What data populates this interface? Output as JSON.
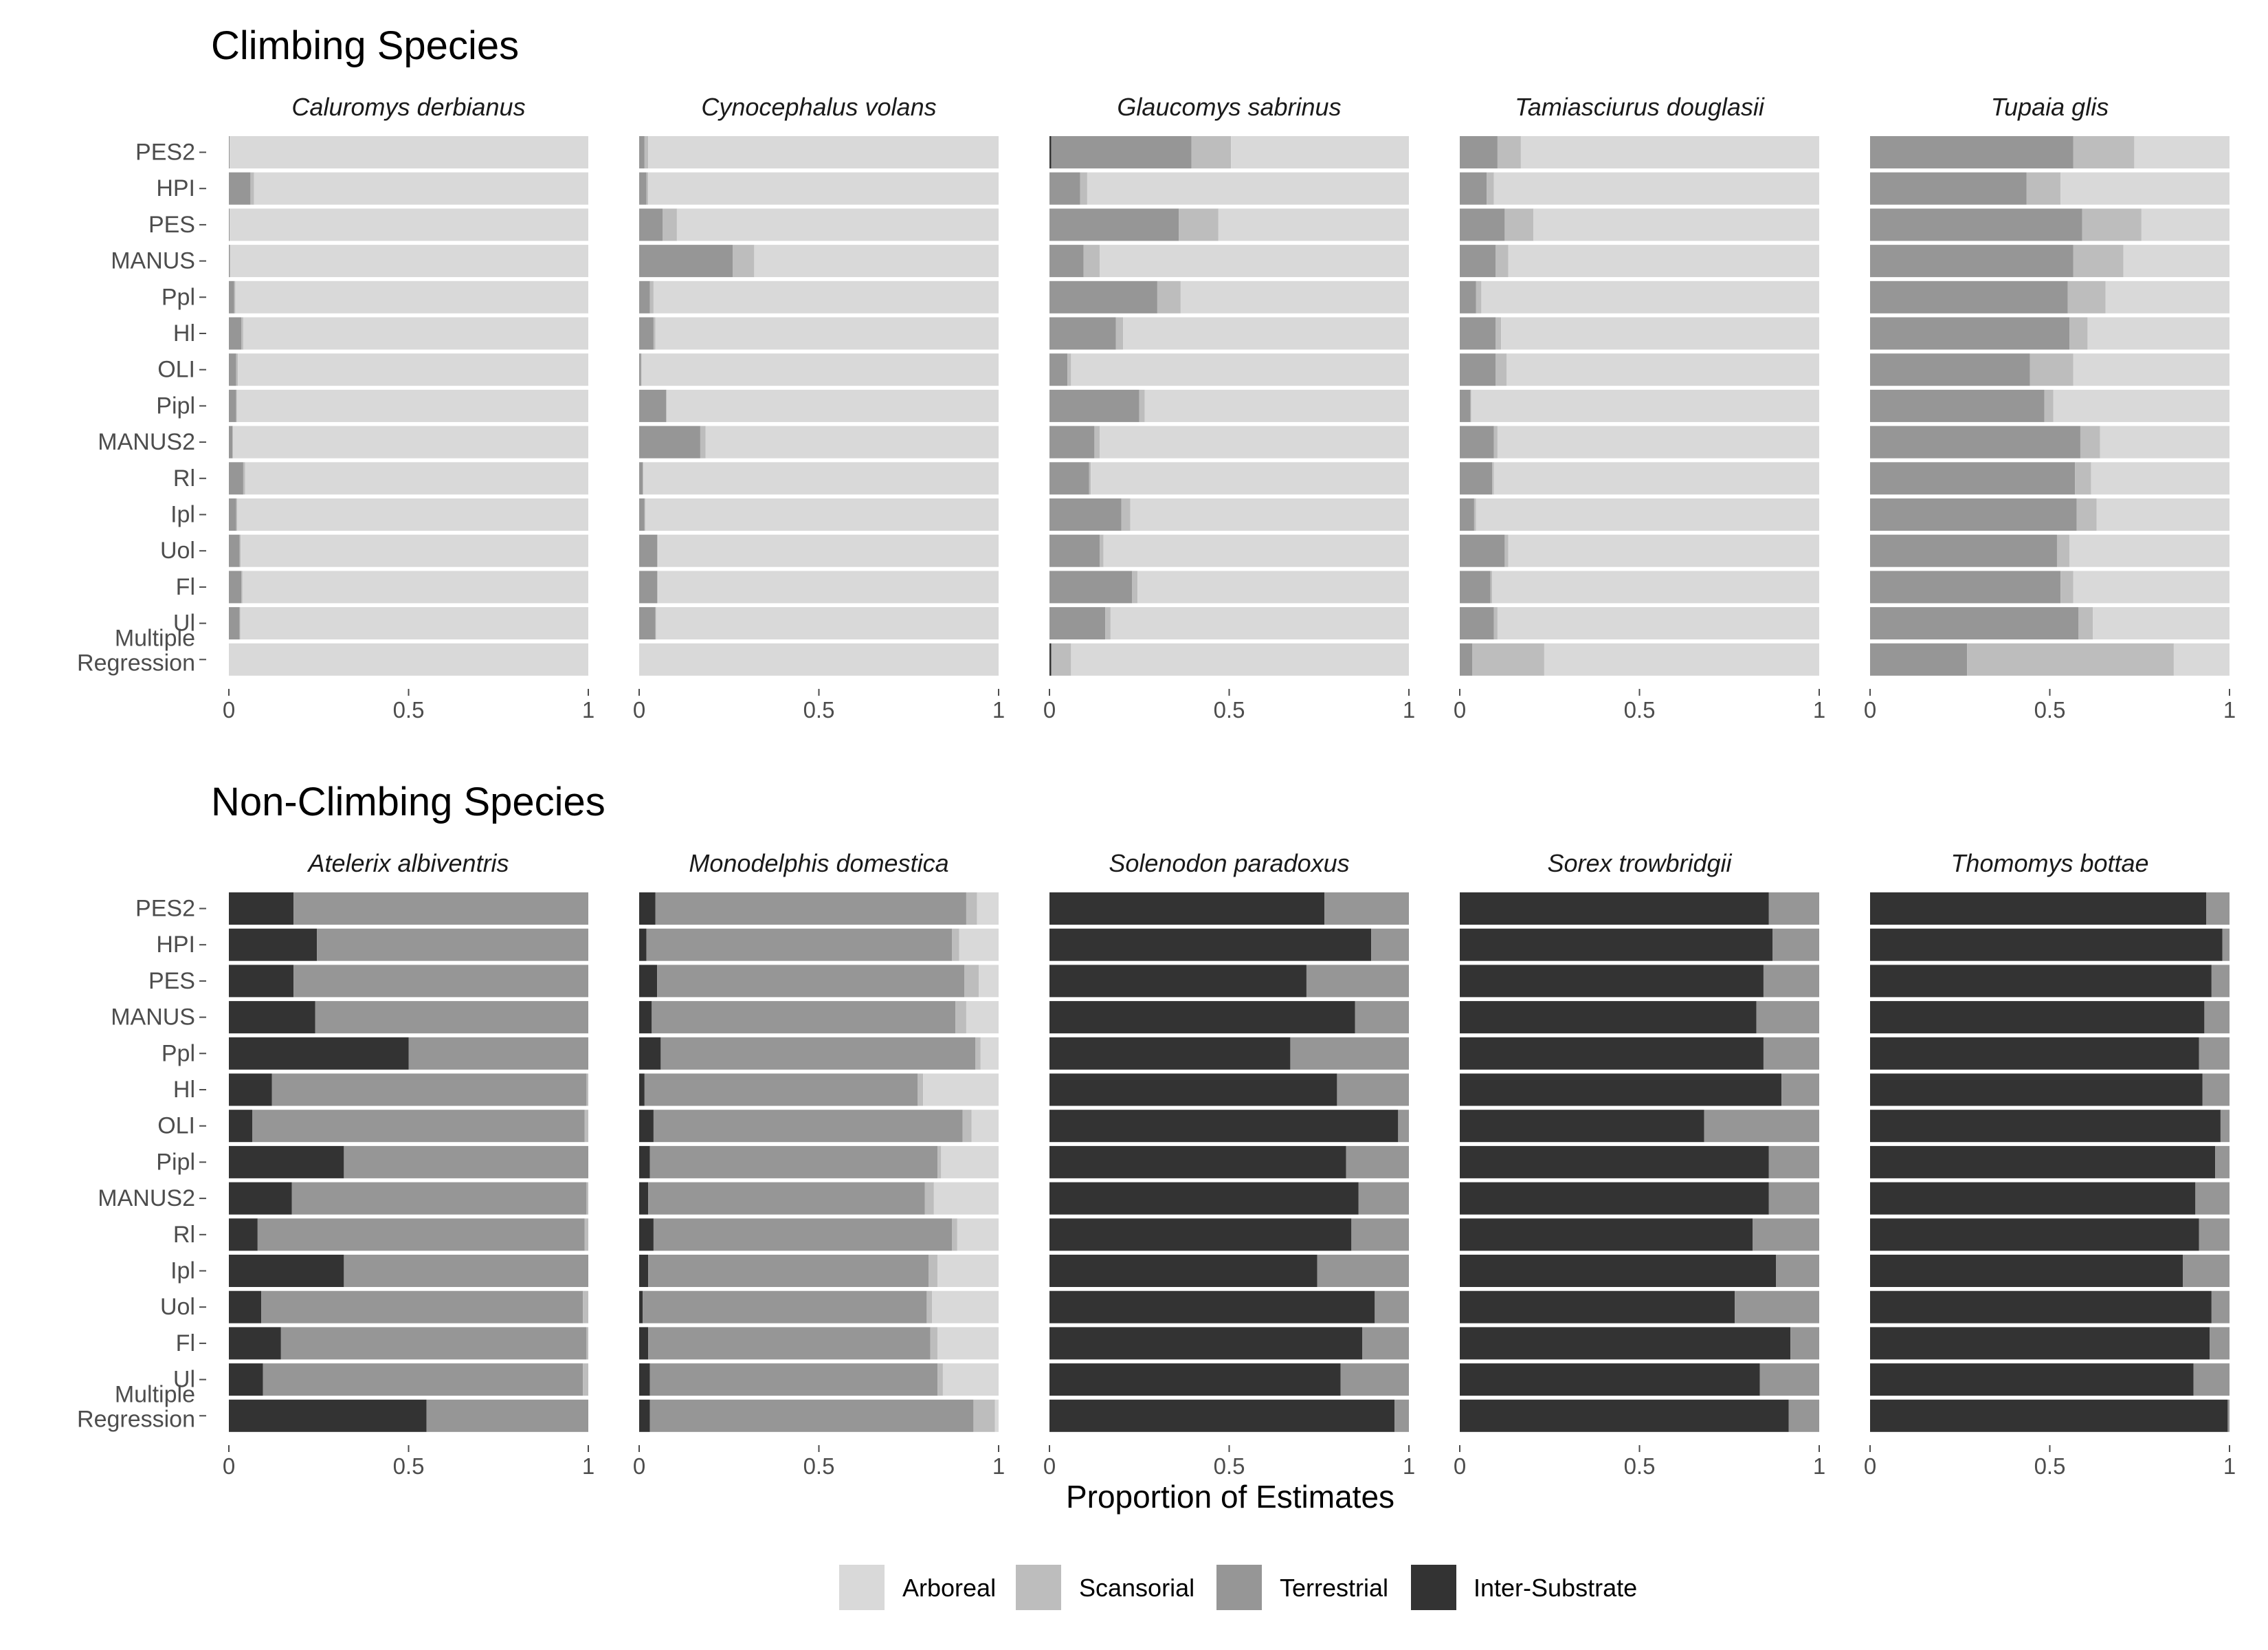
{
  "chart_data": {
    "type": "bar",
    "orientation": "horizontal",
    "stacked": true,
    "xlabel": "Proportion of Estimates",
    "xlim": [
      0,
      1
    ],
    "xticks": [
      0,
      0.5,
      1
    ],
    "xtick_labels": [
      "0",
      "0.5",
      "1"
    ],
    "grid": false,
    "legend_position": "bottom",
    "legend": [
      {
        "name": "Arboreal",
        "color": "#d9d9d9"
      },
      {
        "name": "Scansorial",
        "color": "#bdbdbd"
      },
      {
        "name": "Terrestrial",
        "color": "#969696"
      },
      {
        "name": "Inter-Substrate",
        "color": "#333333"
      }
    ],
    "series_order": [
      "Inter-Substrate",
      "Terrestrial",
      "Scansorial",
      "Arboreal"
    ],
    "categories": [
      "PES2",
      "HPI",
      "PES",
      "MANUS",
      "Ppl",
      "Hl",
      "OLI",
      "Pipl",
      "MANUS2",
      "Rl",
      "Ipl",
      "Uol",
      "Fl",
      "Ul",
      "Multiple\nRegression"
    ],
    "groups": [
      {
        "title": "Climbing Species",
        "facets": [
          {
            "title": "Caluromys derbianus",
            "bars": [
              [
                0,
                0.002,
                0,
                0.998
              ],
              [
                0,
                0.06,
                0.01,
                0.93
              ],
              [
                0,
                0.002,
                0,
                0.998
              ],
              [
                0,
                0.003,
                0,
                0.997
              ],
              [
                0,
                0.015,
                0.003,
                0.982
              ],
              [
                0,
                0.035,
                0.005,
                0.96
              ],
              [
                0,
                0.02,
                0.005,
                0.975
              ],
              [
                0,
                0.02,
                0.002,
                0.978
              ],
              [
                0,
                0.01,
                0.002,
                0.988
              ],
              [
                0,
                0.04,
                0.005,
                0.955
              ],
              [
                0,
                0.02,
                0.003,
                0.977
              ],
              [
                0,
                0.03,
                0.003,
                0.967
              ],
              [
                0,
                0.035,
                0.003,
                0.962
              ],
              [
                0,
                0.03,
                0.002,
                0.968
              ],
              [
                0,
                0,
                0,
                1
              ]
            ]
          },
          {
            "title": "Cynocephalus volans",
            "bars": [
              [
                0,
                0.015,
                0.01,
                0.975
              ],
              [
                0,
                0.02,
                0.005,
                0.975
              ],
              [
                0,
                0.065,
                0.04,
                0.895
              ],
              [
                0,
                0.26,
                0.06,
                0.68
              ],
              [
                0,
                0.03,
                0.01,
                0.96
              ],
              [
                0,
                0.04,
                0.005,
                0.955
              ],
              [
                0,
                0.005,
                0.002,
                0.993
              ],
              [
                0,
                0.075,
                0.002,
                0.923
              ],
              [
                0,
                0.17,
                0.015,
                0.815
              ],
              [
                0,
                0.01,
                0.002,
                0.988
              ],
              [
                0,
                0.015,
                0.002,
                0.983
              ],
              [
                0,
                0.05,
                0.002,
                0.948
              ],
              [
                0,
                0.05,
                0.002,
                0.948
              ],
              [
                0,
                0.045,
                0.002,
                0.953
              ],
              [
                0,
                0,
                0,
                1
              ]
            ]
          },
          {
            "title": "Glaucomys sabrinus",
            "bars": [
              [
                0.005,
                0.39,
                0.11,
                0.495
              ],
              [
                0,
                0.085,
                0.02,
                0.895
              ],
              [
                0,
                0.36,
                0.11,
                0.53
              ],
              [
                0,
                0.095,
                0.045,
                0.86
              ],
              [
                0,
                0.3,
                0.065,
                0.635
              ],
              [
                0,
                0.185,
                0.02,
                0.795
              ],
              [
                0,
                0.05,
                0.01,
                0.94
              ],
              [
                0,
                0.25,
                0.015,
                0.735
              ],
              [
                0,
                0.125,
                0.015,
                0.86
              ],
              [
                0,
                0.11,
                0.005,
                0.885
              ],
              [
                0,
                0.2,
                0.025,
                0.775
              ],
              [
                0,
                0.14,
                0.01,
                0.85
              ],
              [
                0,
                0.23,
                0.015,
                0.755
              ],
              [
                0,
                0.155,
                0.015,
                0.83
              ],
              [
                0.005,
                0,
                0.055,
                0.94
              ]
            ]
          },
          {
            "title": "Tamiasciurus douglasii",
            "bars": [
              [
                0,
                0.105,
                0.065,
                0.83
              ],
              [
                0,
                0.075,
                0.02,
                0.905
              ],
              [
                0,
                0.125,
                0.08,
                0.795
              ],
              [
                0,
                0.1,
                0.035,
                0.865
              ],
              [
                0,
                0.045,
                0.015,
                0.94
              ],
              [
                0,
                0.1,
                0.015,
                0.885
              ],
              [
                0,
                0.1,
                0.03,
                0.87
              ],
              [
                0,
                0.03,
                0.002,
                0.968
              ],
              [
                0,
                0.095,
                0.01,
                0.895
              ],
              [
                0,
                0.09,
                0.005,
                0.905
              ],
              [
                0,
                0.04,
                0.005,
                0.955
              ],
              [
                0,
                0.125,
                0.01,
                0.865
              ],
              [
                0,
                0.085,
                0.005,
                0.91
              ],
              [
                0,
                0.095,
                0.01,
                0.895
              ],
              [
                0,
                0.035,
                0.2,
                0.765
              ]
            ]
          },
          {
            "title": "Tupaia glis",
            "bars": [
              [
                0,
                0.565,
                0.17,
                0.265
              ],
              [
                0,
                0.435,
                0.095,
                0.47
              ],
              [
                0,
                0.59,
                0.165,
                0.245
              ],
              [
                0,
                0.565,
                0.14,
                0.295
              ],
              [
                0,
                0.55,
                0.105,
                0.345
              ],
              [
                0,
                0.555,
                0.05,
                0.395
              ],
              [
                0,
                0.445,
                0.12,
                0.435
              ],
              [
                0,
                0.485,
                0.025,
                0.49
              ],
              [
                0,
                0.585,
                0.055,
                0.36
              ],
              [
                0,
                0.57,
                0.045,
                0.385
              ],
              [
                0,
                0.575,
                0.055,
                0.37
              ],
              [
                0,
                0.52,
                0.035,
                0.445
              ],
              [
                0,
                0.53,
                0.035,
                0.435
              ],
              [
                0,
                0.58,
                0.04,
                0.38
              ],
              [
                0,
                0.27,
                0.575,
                0.155
              ]
            ]
          }
        ]
      },
      {
        "title": "Non-Climbing Species",
        "facets": [
          {
            "title": "Atelerix albiventris",
            "bars": [
              [
                0.18,
                0.82,
                0,
                0
              ],
              [
                0.245,
                0.755,
                0,
                0
              ],
              [
                0.18,
                0.82,
                0,
                0
              ],
              [
                0.24,
                0.76,
                0,
                0
              ],
              [
                0.5,
                0.5,
                0,
                0
              ],
              [
                0.12,
                0.875,
                0.005,
                0
              ],
              [
                0.065,
                0.925,
                0.01,
                0
              ],
              [
                0.32,
                0.68,
                0,
                0
              ],
              [
                0.175,
                0.82,
                0.005,
                0
              ],
              [
                0.08,
                0.91,
                0.01,
                0
              ],
              [
                0.32,
                0.68,
                0,
                0
              ],
              [
                0.09,
                0.895,
                0.015,
                0
              ],
              [
                0.145,
                0.85,
                0.005,
                0
              ],
              [
                0.095,
                0.89,
                0.015,
                0
              ],
              [
                0.55,
                0.45,
                0,
                0
              ]
            ]
          },
          {
            "title": "Monodelphis domestica",
            "bars": [
              [
                0.045,
                0.865,
                0.03,
                0.06
              ],
              [
                0.02,
                0.85,
                0.02,
                0.11
              ],
              [
                0.05,
                0.855,
                0.04,
                0.055
              ],
              [
                0.035,
                0.845,
                0.03,
                0.09
              ],
              [
                0.06,
                0.875,
                0.015,
                0.05
              ],
              [
                0.015,
                0.76,
                0.015,
                0.21
              ],
              [
                0.04,
                0.86,
                0.025,
                0.075
              ],
              [
                0.03,
                0.8,
                0.01,
                0.16
              ],
              [
                0.025,
                0.77,
                0.025,
                0.18
              ],
              [
                0.04,
                0.83,
                0.015,
                0.115
              ],
              [
                0.025,
                0.78,
                0.025,
                0.17
              ],
              [
                0.01,
                0.79,
                0.015,
                0.185
              ],
              [
                0.025,
                0.785,
                0.02,
                0.17
              ],
              [
                0.03,
                0.8,
                0.015,
                0.155
              ],
              [
                0.03,
                0.9,
                0.06,
                0.01
              ]
            ]
          },
          {
            "title": "Solenodon paradoxus",
            "bars": [
              [
                0.765,
                0.235,
                0,
                0
              ],
              [
                0.895,
                0.105,
                0,
                0
              ],
              [
                0.715,
                0.285,
                0,
                0
              ],
              [
                0.85,
                0.15,
                0,
                0
              ],
              [
                0.67,
                0.33,
                0,
                0
              ],
              [
                0.8,
                0.2,
                0,
                0
              ],
              [
                0.97,
                0.03,
                0,
                0
              ],
              [
                0.825,
                0.175,
                0,
                0
              ],
              [
                0.86,
                0.14,
                0,
                0
              ],
              [
                0.84,
                0.16,
                0,
                0
              ],
              [
                0.745,
                0.255,
                0,
                0
              ],
              [
                0.905,
                0.095,
                0,
                0
              ],
              [
                0.87,
                0.13,
                0,
                0
              ],
              [
                0.81,
                0.19,
                0,
                0
              ],
              [
                0.96,
                0.04,
                0,
                0
              ]
            ]
          },
          {
            "title": "Sorex trowbridgii",
            "bars": [
              [
                0.86,
                0.14,
                0,
                0
              ],
              [
                0.87,
                0.13,
                0,
                0
              ],
              [
                0.845,
                0.155,
                0,
                0
              ],
              [
                0.825,
                0.175,
                0,
                0
              ],
              [
                0.845,
                0.155,
                0,
                0
              ],
              [
                0.895,
                0.105,
                0,
                0
              ],
              [
                0.68,
                0.32,
                0,
                0
              ],
              [
                0.86,
                0.14,
                0,
                0
              ],
              [
                0.86,
                0.14,
                0,
                0
              ],
              [
                0.815,
                0.185,
                0,
                0
              ],
              [
                0.88,
                0.12,
                0,
                0
              ],
              [
                0.765,
                0.235,
                0,
                0
              ],
              [
                0.92,
                0.08,
                0,
                0
              ],
              [
                0.835,
                0.165,
                0,
                0
              ],
              [
                0.915,
                0.085,
                0,
                0
              ]
            ]
          },
          {
            "title": "Thomomys bottae",
            "bars": [
              [
                0.935,
                0.065,
                0,
                0
              ],
              [
                0.98,
                0.02,
                0,
                0
              ],
              [
                0.95,
                0.05,
                0,
                0
              ],
              [
                0.93,
                0.07,
                0,
                0
              ],
              [
                0.915,
                0.085,
                0,
                0
              ],
              [
                0.925,
                0.075,
                0,
                0
              ],
              [
                0.975,
                0.025,
                0,
                0
              ],
              [
                0.96,
                0.04,
                0,
                0
              ],
              [
                0.905,
                0.095,
                0,
                0
              ],
              [
                0.915,
                0.085,
                0,
                0
              ],
              [
                0.87,
                0.13,
                0,
                0
              ],
              [
                0.95,
                0.05,
                0,
                0
              ],
              [
                0.945,
                0.055,
                0,
                0
              ],
              [
                0.9,
                0.1,
                0,
                0
              ],
              [
                0.995,
                0.005,
                0,
                0
              ]
            ]
          }
        ]
      }
    ]
  }
}
